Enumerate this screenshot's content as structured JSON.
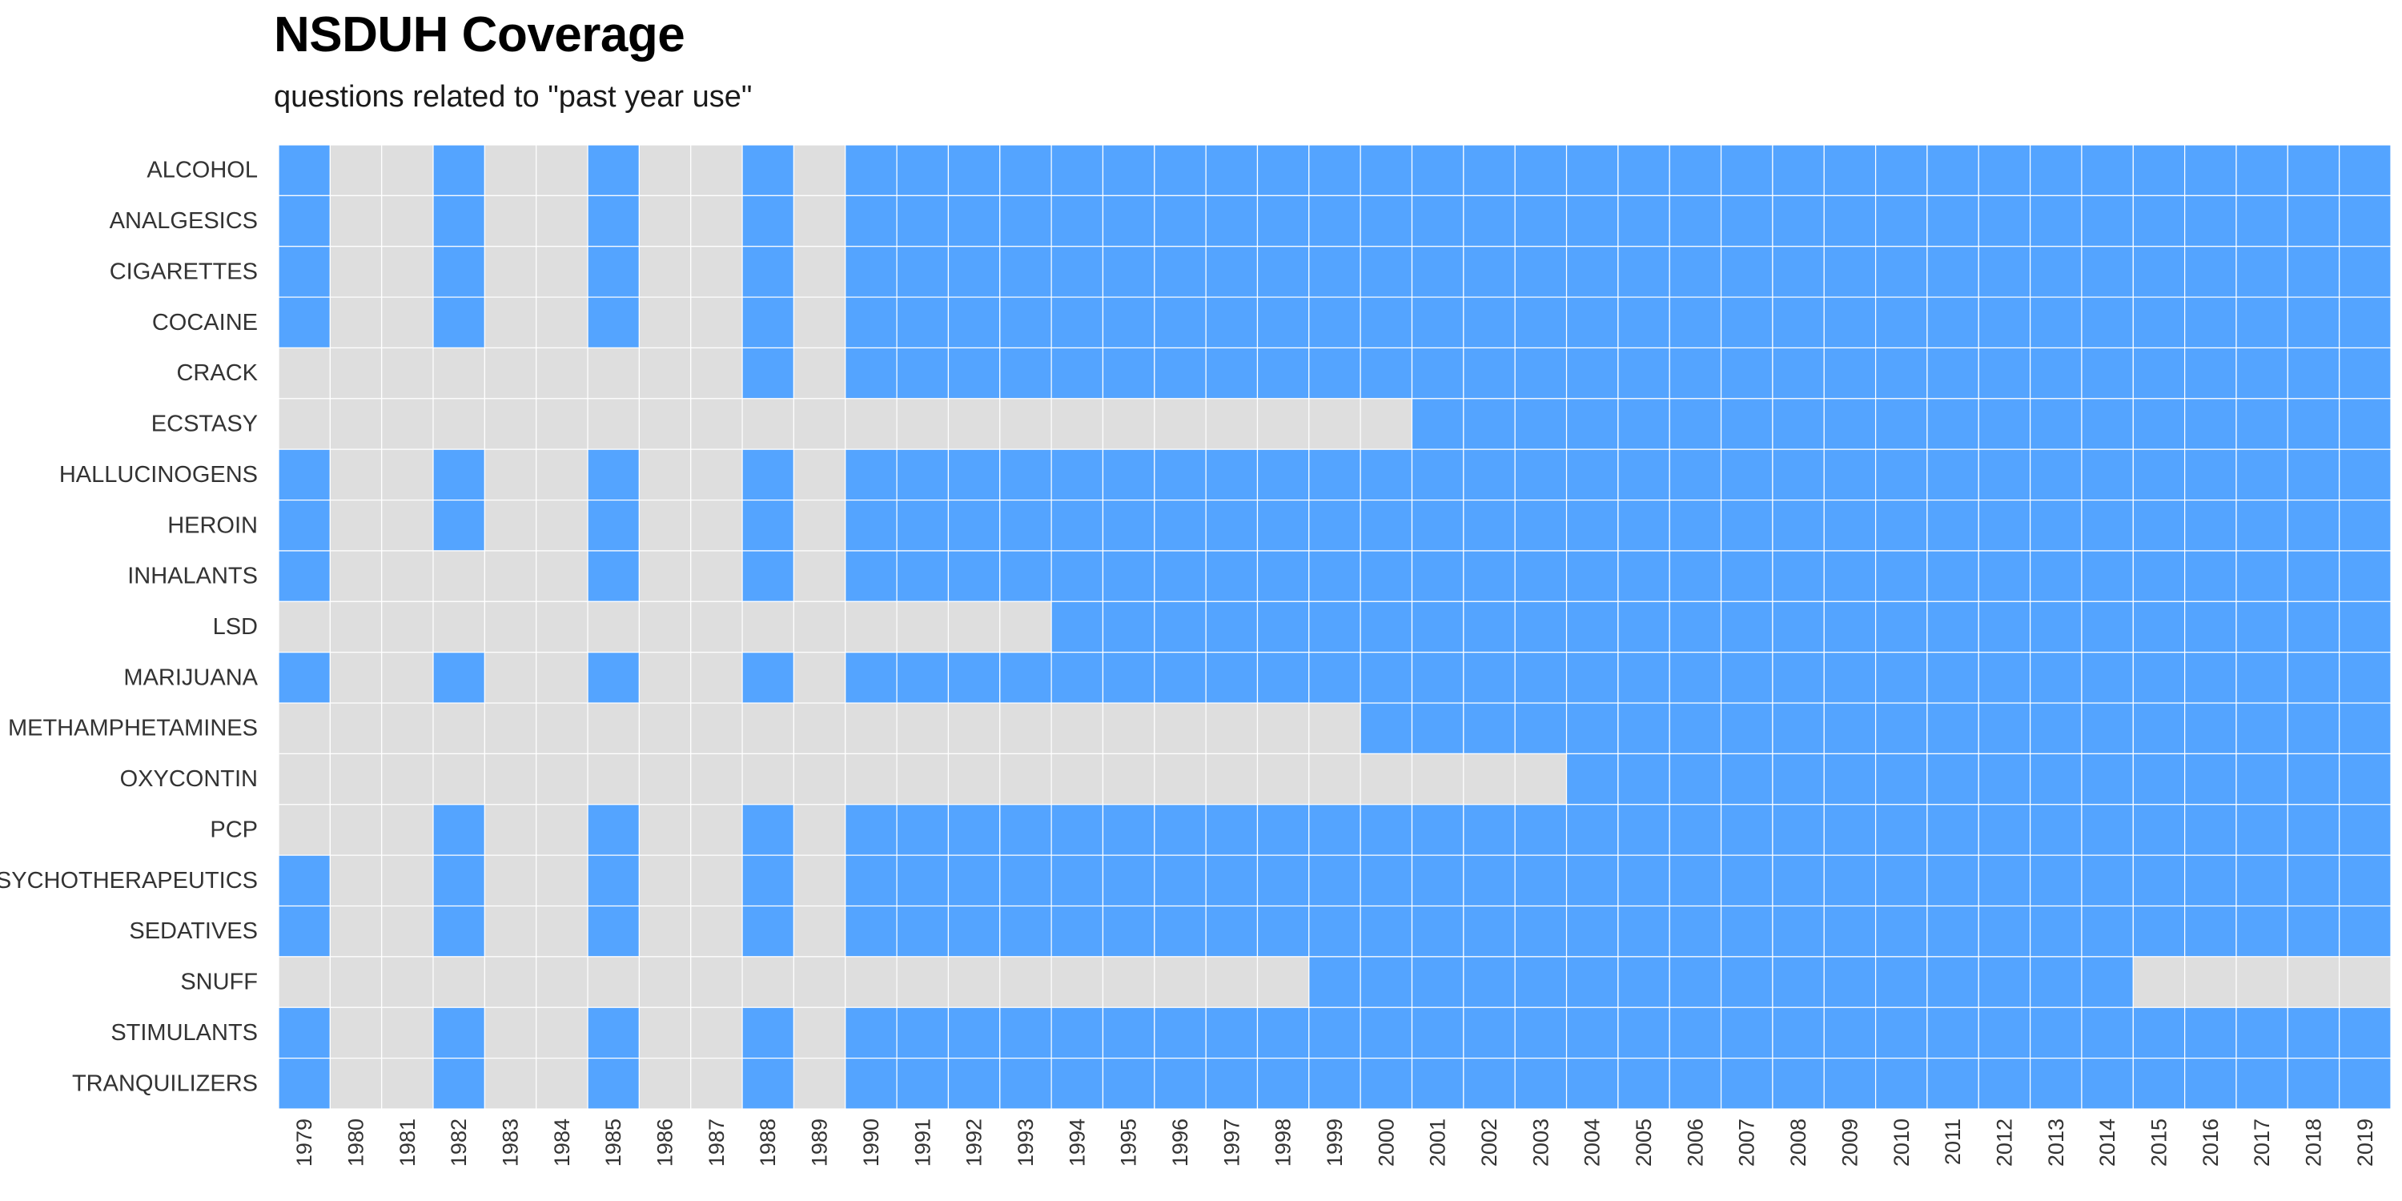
{
  "title": "NSDUH Coverage",
  "subtitle": "questions related to \"past year use\"",
  "colors": {
    "covered": "#54a4ff",
    "not_covered": "#dedede",
    "grid": "#ffffff"
  },
  "chart_data": {
    "type": "heatmap",
    "title": "NSDUH Coverage",
    "subtitle": "questions related to \"past year use\"",
    "xlabel": "",
    "ylabel": "",
    "grid": true,
    "legend": "none",
    "x": [
      1979,
      1980,
      1981,
      1982,
      1983,
      1984,
      1985,
      1986,
      1987,
      1988,
      1989,
      1990,
      1991,
      1992,
      1993,
      1994,
      1995,
      1996,
      1997,
      1998,
      1999,
      2000,
      2001,
      2002,
      2003,
      2004,
      2005,
      2006,
      2007,
      2008,
      2009,
      2010,
      2011,
      2012,
      2013,
      2014,
      2015,
      2016,
      2017,
      2018,
      2019
    ],
    "y": [
      "ALCOHOL",
      "ANALGESICS",
      "CIGARETTES",
      "COCAINE",
      "CRACK",
      "ECSTASY",
      "HALLUCINOGENS",
      "HEROIN",
      "INHALANTS",
      "LSD",
      "MARIJUANA",
      "METHAMPHETAMINES",
      "OXYCONTIN",
      "PCP",
      "PSYCHOTHERAPEUTICS",
      "SEDATIVES",
      "SNUFF",
      "STIMULANTS",
      "TRANQUILIZERS"
    ],
    "values": [
      [
        1,
        0,
        0,
        1,
        0,
        0,
        1,
        0,
        0,
        1,
        0,
        1,
        1,
        1,
        1,
        1,
        1,
        1,
        1,
        1,
        1,
        1,
        1,
        1,
        1,
        1,
        1,
        1,
        1,
        1,
        1,
        1,
        1,
        1,
        1,
        1,
        1,
        1,
        1,
        1,
        1
      ],
      [
        1,
        0,
        0,
        1,
        0,
        0,
        1,
        0,
        0,
        1,
        0,
        1,
        1,
        1,
        1,
        1,
        1,
        1,
        1,
        1,
        1,
        1,
        1,
        1,
        1,
        1,
        1,
        1,
        1,
        1,
        1,
        1,
        1,
        1,
        1,
        1,
        1,
        1,
        1,
        1,
        1
      ],
      [
        1,
        0,
        0,
        1,
        0,
        0,
        1,
        0,
        0,
        1,
        0,
        1,
        1,
        1,
        1,
        1,
        1,
        1,
        1,
        1,
        1,
        1,
        1,
        1,
        1,
        1,
        1,
        1,
        1,
        1,
        1,
        1,
        1,
        1,
        1,
        1,
        1,
        1,
        1,
        1,
        1
      ],
      [
        1,
        0,
        0,
        1,
        0,
        0,
        1,
        0,
        0,
        1,
        0,
        1,
        1,
        1,
        1,
        1,
        1,
        1,
        1,
        1,
        1,
        1,
        1,
        1,
        1,
        1,
        1,
        1,
        1,
        1,
        1,
        1,
        1,
        1,
        1,
        1,
        1,
        1,
        1,
        1,
        1
      ],
      [
        0,
        0,
        0,
        0,
        0,
        0,
        0,
        0,
        0,
        1,
        0,
        1,
        1,
        1,
        1,
        1,
        1,
        1,
        1,
        1,
        1,
        1,
        1,
        1,
        1,
        1,
        1,
        1,
        1,
        1,
        1,
        1,
        1,
        1,
        1,
        1,
        1,
        1,
        1,
        1,
        1
      ],
      [
        0,
        0,
        0,
        0,
        0,
        0,
        0,
        0,
        0,
        0,
        0,
        0,
        0,
        0,
        0,
        0,
        0,
        0,
        0,
        0,
        0,
        0,
        1,
        1,
        1,
        1,
        1,
        1,
        1,
        1,
        1,
        1,
        1,
        1,
        1,
        1,
        1,
        1,
        1,
        1,
        1
      ],
      [
        1,
        0,
        0,
        1,
        0,
        0,
        1,
        0,
        0,
        1,
        0,
        1,
        1,
        1,
        1,
        1,
        1,
        1,
        1,
        1,
        1,
        1,
        1,
        1,
        1,
        1,
        1,
        1,
        1,
        1,
        1,
        1,
        1,
        1,
        1,
        1,
        1,
        1,
        1,
        1,
        1
      ],
      [
        1,
        0,
        0,
        1,
        0,
        0,
        1,
        0,
        0,
        1,
        0,
        1,
        1,
        1,
        1,
        1,
        1,
        1,
        1,
        1,
        1,
        1,
        1,
        1,
        1,
        1,
        1,
        1,
        1,
        1,
        1,
        1,
        1,
        1,
        1,
        1,
        1,
        1,
        1,
        1,
        1
      ],
      [
        1,
        0,
        0,
        0,
        0,
        0,
        1,
        0,
        0,
        1,
        0,
        1,
        1,
        1,
        1,
        1,
        1,
        1,
        1,
        1,
        1,
        1,
        1,
        1,
        1,
        1,
        1,
        1,
        1,
        1,
        1,
        1,
        1,
        1,
        1,
        1,
        1,
        1,
        1,
        1,
        1
      ],
      [
        0,
        0,
        0,
        0,
        0,
        0,
        0,
        0,
        0,
        0,
        0,
        0,
        0,
        0,
        0,
        1,
        1,
        1,
        1,
        1,
        1,
        1,
        1,
        1,
        1,
        1,
        1,
        1,
        1,
        1,
        1,
        1,
        1,
        1,
        1,
        1,
        1,
        1,
        1,
        1,
        1
      ],
      [
        1,
        0,
        0,
        1,
        0,
        0,
        1,
        0,
        0,
        1,
        0,
        1,
        1,
        1,
        1,
        1,
        1,
        1,
        1,
        1,
        1,
        1,
        1,
        1,
        1,
        1,
        1,
        1,
        1,
        1,
        1,
        1,
        1,
        1,
        1,
        1,
        1,
        1,
        1,
        1,
        1
      ],
      [
        0,
        0,
        0,
        0,
        0,
        0,
        0,
        0,
        0,
        0,
        0,
        0,
        0,
        0,
        0,
        0,
        0,
        0,
        0,
        0,
        0,
        1,
        1,
        1,
        1,
        1,
        1,
        1,
        1,
        1,
        1,
        1,
        1,
        1,
        1,
        1,
        1,
        1,
        1,
        1,
        1
      ],
      [
        0,
        0,
        0,
        0,
        0,
        0,
        0,
        0,
        0,
        0,
        0,
        0,
        0,
        0,
        0,
        0,
        0,
        0,
        0,
        0,
        0,
        0,
        0,
        0,
        0,
        1,
        1,
        1,
        1,
        1,
        1,
        1,
        1,
        1,
        1,
        1,
        1,
        1,
        1,
        1,
        1
      ],
      [
        0,
        0,
        0,
        1,
        0,
        0,
        1,
        0,
        0,
        1,
        0,
        1,
        1,
        1,
        1,
        1,
        1,
        1,
        1,
        1,
        1,
        1,
        1,
        1,
        1,
        1,
        1,
        1,
        1,
        1,
        1,
        1,
        1,
        1,
        1,
        1,
        1,
        1,
        1,
        1,
        1
      ],
      [
        1,
        0,
        0,
        1,
        0,
        0,
        1,
        0,
        0,
        1,
        0,
        1,
        1,
        1,
        1,
        1,
        1,
        1,
        1,
        1,
        1,
        1,
        1,
        1,
        1,
        1,
        1,
        1,
        1,
        1,
        1,
        1,
        1,
        1,
        1,
        1,
        1,
        1,
        1,
        1,
        1
      ],
      [
        1,
        0,
        0,
        1,
        0,
        0,
        1,
        0,
        0,
        1,
        0,
        1,
        1,
        1,
        1,
        1,
        1,
        1,
        1,
        1,
        1,
        1,
        1,
        1,
        1,
        1,
        1,
        1,
        1,
        1,
        1,
        1,
        1,
        1,
        1,
        1,
        1,
        1,
        1,
        1,
        1
      ],
      [
        0,
        0,
        0,
        0,
        0,
        0,
        0,
        0,
        0,
        0,
        0,
        0,
        0,
        0,
        0,
        0,
        0,
        0,
        0,
        0,
        1,
        1,
        1,
        1,
        1,
        1,
        1,
        1,
        1,
        1,
        1,
        1,
        1,
        1,
        1,
        1,
        0,
        0,
        0,
        0,
        0
      ],
      [
        1,
        0,
        0,
        1,
        0,
        0,
        1,
        0,
        0,
        1,
        0,
        1,
        1,
        1,
        1,
        1,
        1,
        1,
        1,
        1,
        1,
        1,
        1,
        1,
        1,
        1,
        1,
        1,
        1,
        1,
        1,
        1,
        1,
        1,
        1,
        1,
        1,
        1,
        1,
        1,
        1
      ],
      [
        1,
        0,
        0,
        1,
        0,
        0,
        1,
        0,
        0,
        1,
        0,
        1,
        1,
        1,
        1,
        1,
        1,
        1,
        1,
        1,
        1,
        1,
        1,
        1,
        1,
        1,
        1,
        1,
        1,
        1,
        1,
        1,
        1,
        1,
        1,
        1,
        1,
        1,
        1,
        1,
        1
      ]
    ]
  }
}
